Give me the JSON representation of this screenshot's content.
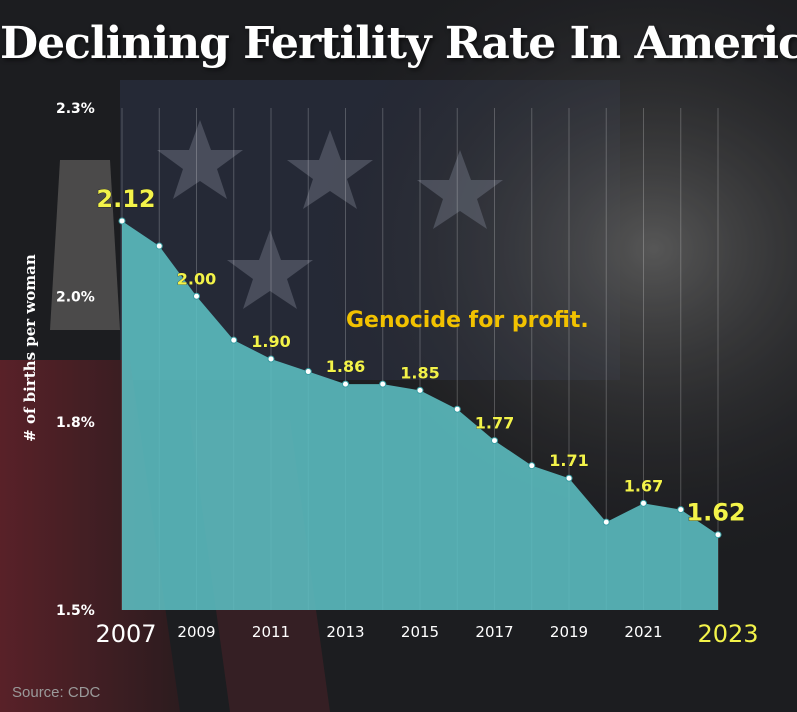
{
  "header": {
    "title": "Declining Fertility Rate In America"
  },
  "annotation": "Genocide for profit.",
  "source": "Source: CDC",
  "colors": {
    "area": "#5cbfc3",
    "label_yellow": "#f3f34a",
    "annotation": "#f2c200",
    "text": "#ffffff"
  },
  "chart_data": {
    "type": "area",
    "title": "Declining Fertility Rate In America",
    "xlabel": "",
    "ylabel": "# of births per woman",
    "x": [
      2007,
      2008,
      2009,
      2010,
      2011,
      2012,
      2013,
      2014,
      2015,
      2016,
      2017,
      2018,
      2019,
      2020,
      2021,
      2022,
      2023
    ],
    "values": [
      2.12,
      2.08,
      2.0,
      1.93,
      1.9,
      1.88,
      1.86,
      1.86,
      1.85,
      1.82,
      1.77,
      1.73,
      1.71,
      1.64,
      1.67,
      1.66,
      1.62
    ],
    "labels": [
      {
        "year": 2007,
        "text": "2.12",
        "emphasis": true
      },
      {
        "year": 2009,
        "text": "2.00"
      },
      {
        "year": 2011,
        "text": "1.90"
      },
      {
        "year": 2013,
        "text": "1.86"
      },
      {
        "year": 2015,
        "text": "1.85"
      },
      {
        "year": 2017,
        "text": "1.77"
      },
      {
        "year": 2019,
        "text": "1.71"
      },
      {
        "year": 2021,
        "text": "1.67"
      },
      {
        "year": 2023,
        "text": "1.62",
        "emphasis": true
      }
    ],
    "y_ticks": [
      {
        "value": 2.3,
        "label": "2.3%"
      },
      {
        "value": 2.0,
        "label": "2.0%"
      },
      {
        "value": 1.8,
        "label": "1.8%"
      },
      {
        "value": 1.5,
        "label": "1.5%"
      }
    ],
    "x_ticks": [
      {
        "year": 2007,
        "label": "2007",
        "emphasis": true
      },
      {
        "year": 2009,
        "label": "2009"
      },
      {
        "year": 2011,
        "label": "2011"
      },
      {
        "year": 2013,
        "label": "2013"
      },
      {
        "year": 2015,
        "label": "2015"
      },
      {
        "year": 2017,
        "label": "2017"
      },
      {
        "year": 2019,
        "label": "2019"
      },
      {
        "year": 2021,
        "label": "2021"
      },
      {
        "year": 2023,
        "label": "2023",
        "emphasis": true
      }
    ],
    "ylim": [
      1.5,
      2.3
    ],
    "xlim": [
      2007,
      2023
    ],
    "grid": "vertical"
  }
}
